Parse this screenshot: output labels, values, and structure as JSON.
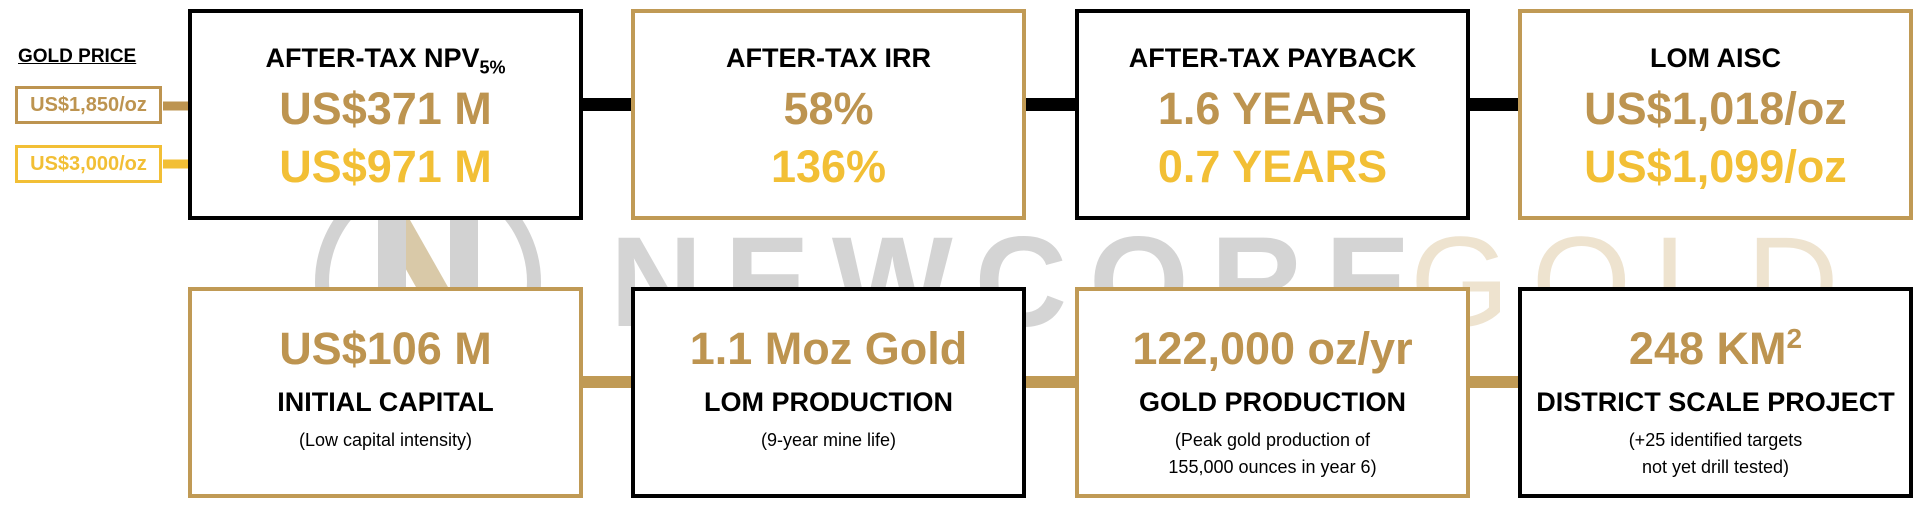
{
  "watermark": {
    "brand": "NEWCORE",
    "suffix": "GOLD"
  },
  "gold_price": {
    "label": "GOLD PRICE",
    "prices": [
      "US$1,850/oz",
      "US$3,000/oz"
    ]
  },
  "top_boxes": [
    {
      "title": "AFTER-TAX NPV",
      "title_sub": "5%",
      "values": [
        "US$371 M",
        "US$971 M"
      ]
    },
    {
      "title": "AFTER-TAX IRR",
      "values": [
        "58%",
        "136%"
      ]
    },
    {
      "title": "AFTER-TAX PAYBACK",
      "values": [
        "1.6 YEARS",
        "0.7 YEARS"
      ]
    },
    {
      "title": "LOM AISC",
      "values": [
        "US$1,018/oz",
        "US$1,099/oz"
      ]
    }
  ],
  "bottom_boxes": [
    {
      "value": "US$106 M",
      "label": "INITIAL CAPITAL",
      "note": [
        "(Low capital intensity)"
      ]
    },
    {
      "value": "1.1 Moz Gold",
      "label": "LOM PRODUCTION",
      "note": [
        "(9-year mine life)"
      ]
    },
    {
      "value": "122,000 oz/yr",
      "label": "GOLD PRODUCTION",
      "note": [
        "(Peak gold production of",
        "155,000 ounces in year 6)"
      ]
    },
    {
      "value": "248 KM",
      "value_sup": "2",
      "label": "DISTRICT SCALE PROJECT",
      "note": [
        "(+25 identified targets",
        "not yet drill tested)"
      ]
    }
  ]
}
